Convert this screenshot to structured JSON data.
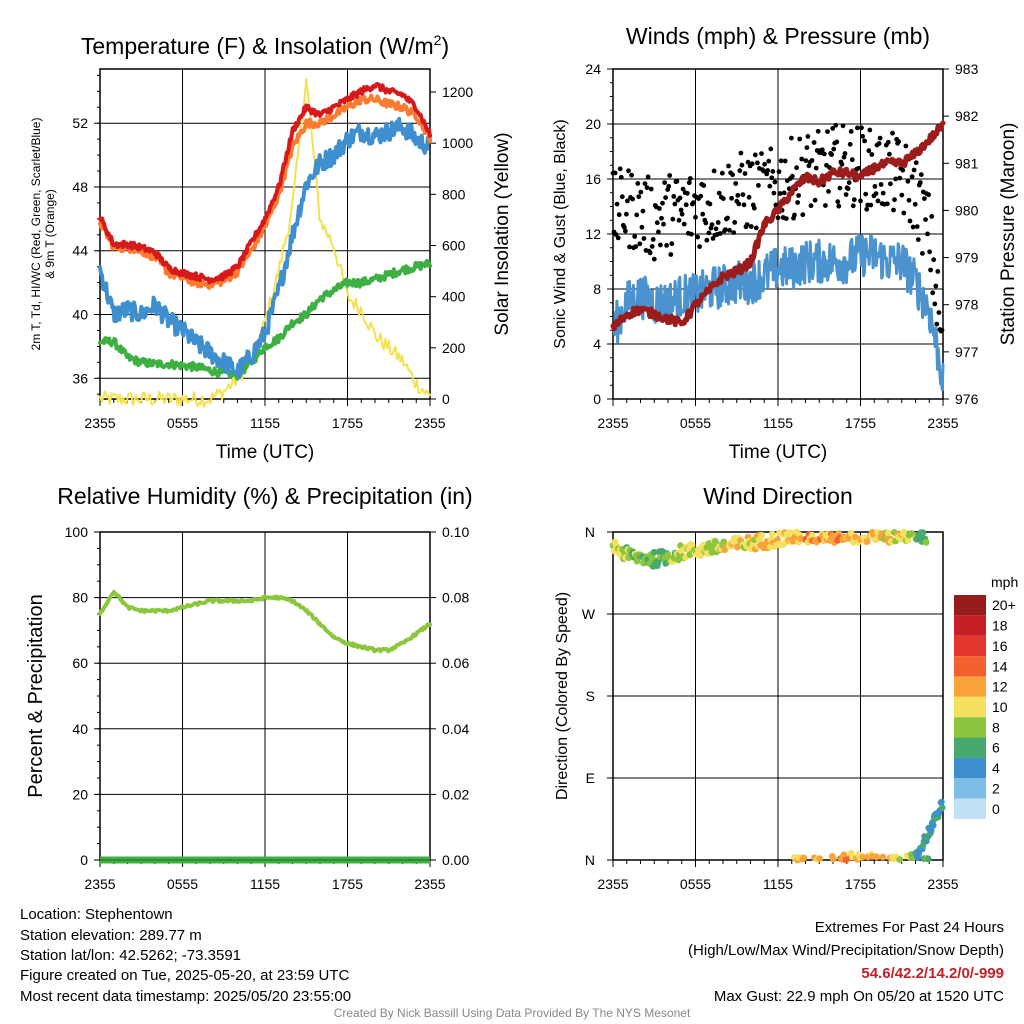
{
  "chart_data": [
    {
      "type": "line",
      "title": "Temperature (F) & Insolation (W/m²)",
      "title_main": "Temperature (F) & Insolation (W/m",
      "title_sup": "2",
      "title_end": ")",
      "xlabel": "Time (UTC)",
      "ylabel_left_line1": "2m T, Td, HI/WC (Red, Green, Scarlet/Blue)",
      "ylabel_left_line2": "& 9m T (Orange)",
      "ylabel_right": "Solar Insolation (Yellow)",
      "x_ticks": [
        "2355",
        "0555",
        "1155",
        "1755",
        "2355"
      ],
      "ylim_left": [
        34.7,
        55.4
      ],
      "y_ticks_left": [
        36,
        40,
        44,
        48,
        52
      ],
      "ylim_right": [
        0,
        1290
      ],
      "y_ticks_right": [
        0,
        200,
        400,
        600,
        800,
        1000,
        1200
      ],
      "x_hours": [
        0,
        1,
        2,
        3,
        4,
        5,
        6,
        7,
        8,
        9,
        10,
        11,
        12,
        13,
        14,
        15,
        16,
        17,
        18,
        19,
        20,
        21,
        22,
        23,
        24
      ],
      "series": [
        {
          "color": "#d7191c",
          "axis": "left",
          "values": [
            46.1,
            44.4,
            44.4,
            44.2,
            43.9,
            42.9,
            42.6,
            42.4,
            42.2,
            42.4,
            43.0,
            44.5,
            46.0,
            48.0,
            51.5,
            53.0,
            52.5,
            53.0,
            53.5,
            54.0,
            54.4,
            54.0,
            53.8,
            53.0,
            51.3
          ]
        },
        {
          "color": "#fb7b30",
          "axis": "left",
          "values": [
            45.8,
            44.2,
            44.2,
            44.0,
            43.6,
            42.6,
            42.3,
            42.0,
            41.9,
            42.1,
            42.7,
            44.0,
            45.5,
            47.5,
            50.5,
            52.0,
            52.0,
            52.5,
            53.0,
            53.5,
            53.5,
            53.2,
            53.0,
            52.5,
            51.1
          ]
        },
        {
          "color": "#3e8fcf",
          "axis": "left",
          "values": [
            42.8,
            40.0,
            40.3,
            40.0,
            40.6,
            39.6,
            39.0,
            38.2,
            37.6,
            37.0,
            36.4,
            37.4,
            38.8,
            41.5,
            45.0,
            48.2,
            49.5,
            50.0,
            51.0,
            51.5,
            51.2,
            51.5,
            51.8,
            51.0,
            50.5
          ]
        },
        {
          "color": "#3eb043",
          "axis": "left",
          "values": [
            38.3,
            38.3,
            37.3,
            37.0,
            36.9,
            36.9,
            36.8,
            36.7,
            36.5,
            36.3,
            36.2,
            37.0,
            38.0,
            38.5,
            39.5,
            40.0,
            41.0,
            41.5,
            42.0,
            42.0,
            42.2,
            42.5,
            42.8,
            43.0,
            43.2
          ]
        },
        {
          "color": "#f2e24d",
          "axis": "right",
          "values": [
            0,
            0,
            0,
            0,
            0,
            0,
            0,
            0,
            0,
            30,
            80,
            150,
            300,
            500,
            750,
            1250,
            700,
            600,
            400,
            350,
            250,
            200,
            150,
            60,
            10
          ]
        }
      ]
    },
    {
      "type": "scatter",
      "title": "Winds (mph) & Pressure (mb)",
      "xlabel": "Time (UTC)",
      "ylabel_left": "Sonic Wind & Gust (Blue, Black)",
      "ylabel_right": "Station Pressure (Maroon)",
      "x_ticks": [
        "2355",
        "0555",
        "1155",
        "1755",
        "2355"
      ],
      "ylim_left": [
        0,
        24
      ],
      "y_ticks_left": [
        0,
        4,
        8,
        12,
        16,
        20,
        24
      ],
      "ylim_right": [
        976,
        983
      ],
      "y_ticks_right": [
        976,
        977,
        978,
        979,
        980,
        981,
        982,
        983
      ],
      "x_hours": [
        0,
        1,
        2,
        3,
        4,
        5,
        6,
        7,
        8,
        9,
        10,
        11,
        12,
        13,
        14,
        15,
        16,
        17,
        18,
        19,
        20,
        21,
        22,
        23,
        24
      ],
      "series": [
        {
          "color": "#4a93cf",
          "axis": "left",
          "values": [
            5.0,
            7.0,
            7.5,
            7.0,
            7.0,
            7.5,
            7.5,
            8.0,
            8.2,
            8.5,
            8.5,
            9.0,
            9.5,
            9.5,
            10.0,
            10.0,
            10.0,
            10.0,
            10.5,
            10.5,
            10.0,
            10.0,
            8.5,
            6.5,
            1.5
          ]
        },
        {
          "color": "#000000",
          "axis": "left",
          "values": [
            13.5,
            14.0,
            13.5,
            13.0,
            13.5,
            13.5,
            14.0,
            14.0,
            14.5,
            15.0,
            15.0,
            15.0,
            15.5,
            16.0,
            16.5,
            16.5,
            17.0,
            17.0,
            17.0,
            16.5,
            16.5,
            16.0,
            15.0,
            12.0,
            3.5
          ]
        },
        {
          "color": "#9c1c1c",
          "axis": "right",
          "values": [
            977.5,
            977.8,
            977.9,
            977.8,
            977.7,
            977.6,
            978.0,
            978.3,
            978.6,
            978.7,
            978.9,
            979.7,
            980.0,
            980.4,
            980.7,
            980.6,
            980.8,
            980.8,
            980.7,
            980.9,
            981.0,
            981.0,
            981.2,
            981.5,
            981.8
          ]
        }
      ]
    },
    {
      "type": "line",
      "title": "Relative Humidity (%) & Precipitation (in)",
      "ylabel_left": "Percent & Precipitation",
      "x_ticks": [
        "2355",
        "0555",
        "1155",
        "1755",
        "2355"
      ],
      "ylim_left": [
        0,
        100
      ],
      "y_ticks_left": [
        0,
        20,
        40,
        60,
        80,
        100
      ],
      "ylim_right": [
        0,
        0.1
      ],
      "y_ticks_right": [
        "0.00",
        "0.02",
        "0.04",
        "0.06",
        "0.08",
        "0.10"
      ],
      "x_hours": [
        0,
        1,
        2,
        3,
        4,
        5,
        6,
        7,
        8,
        9,
        10,
        11,
        12,
        13,
        14,
        15,
        16,
        17,
        18,
        19,
        20,
        21,
        22,
        23,
        24
      ],
      "series": [
        {
          "color": "#8cc63f",
          "axis": "left",
          "values": [
            75,
            82,
            77,
            76,
            76,
            76,
            77,
            78,
            79,
            79,
            79,
            79,
            80,
            80,
            79,
            76,
            72,
            68,
            66,
            65,
            64,
            64,
            66,
            69,
            72
          ]
        },
        {
          "color": "#3eb043",
          "axis": "left",
          "values": [
            0,
            0,
            0,
            0,
            0,
            0,
            0,
            0,
            0,
            0,
            0,
            0,
            0,
            0,
            0,
            0,
            0,
            0,
            0,
            0,
            0,
            0,
            0,
            0,
            0
          ]
        }
      ]
    },
    {
      "type": "scatter",
      "title": "Wind Direction",
      "ylabel_left": "Direction (Colored By Speed)",
      "x_ticks": [
        "2355",
        "0555",
        "1155",
        "1755",
        "2355"
      ],
      "y_ticks": [
        "N",
        "E",
        "S",
        "W",
        "N"
      ],
      "ylim_left": [
        0,
        360
      ],
      "x_hours": [
        0,
        1,
        2,
        3,
        4,
        5,
        6,
        7,
        8,
        9,
        10,
        11,
        12,
        13,
        14,
        15,
        16,
        17,
        18,
        19,
        20,
        21,
        22,
        23,
        24
      ],
      "series": [
        {
          "values": [
            345,
            335,
            332,
            330,
            333,
            338,
            340,
            342,
            344,
            346,
            348,
            350,
            352,
            355,
            356,
            356,
            356,
            355,
            356,
            357,
            356,
            356,
            355,
            356,
            50
          ]
        }
      ],
      "speed_values": [
        9,
        8,
        7,
        7,
        8,
        9,
        9,
        9,
        10,
        10,
        10,
        11,
        11,
        11,
        12,
        12,
        12,
        12,
        11,
        11,
        10,
        10,
        8,
        6,
        3
      ],
      "colorbar_unit": "mph",
      "colorbar_labels": [
        "20+",
        "18",
        "16",
        "14",
        "12",
        "10",
        "8",
        "6",
        "4",
        "2",
        "0"
      ],
      "colorbar_colors": [
        "#961c1c",
        "#c62026",
        "#e3362c",
        "#f16230",
        "#f9a43a",
        "#f5e160",
        "#8cc63f",
        "#47a96b",
        "#3e8fcf",
        "#7dbde6",
        "#bfe3f5"
      ]
    }
  ],
  "footer": {
    "location": "Location: Stephentown",
    "elevation": "Station elevation: 289.77 m",
    "latlon": "Station lat/lon: 42.5262; -73.3591",
    "created": "Figure created on Tue, 2025-05-20, at 23:59 UTC",
    "recent": "Most recent data timestamp: 2025/05/20 23:55:00",
    "extremes_title": "Extremes For Past 24 Hours",
    "extremes_sub": "(High/Low/Max Wind/Precipitation/Snow Depth)",
    "extremes_values": "54.6/42.2/14.2/0/-999",
    "max_gust": "Max Gust: 22.9 mph On 05/20 at 1520 UTC",
    "credit": "Created By Nick Bassill Using Data Provided By The NYS Mesonet"
  }
}
